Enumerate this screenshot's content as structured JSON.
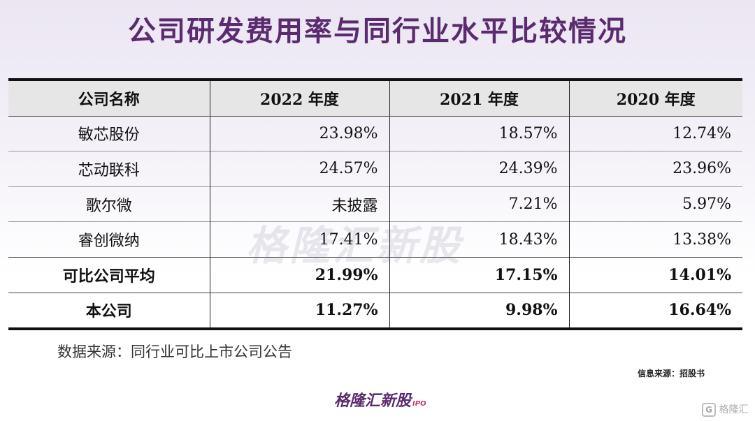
{
  "title": "公司研发费用率与同行业水平比较情况",
  "table": {
    "headers": [
      "公司名称",
      "2022 年度",
      "2021 年度",
      "2020 年度"
    ],
    "rows": [
      {
        "name": "敏芯股份",
        "y2022": "23.98%",
        "y2021": "18.57%",
        "y2020": "12.74%"
      },
      {
        "name": "芯动联科",
        "y2022": "24.57%",
        "y2021": "24.39%",
        "y2020": "23.96%"
      },
      {
        "name": "歌尔微",
        "y2022": "未披露",
        "y2021": "7.21%",
        "y2020": "5.97%"
      },
      {
        "name": "睿创微纳",
        "y2022": "17.41%",
        "y2021": "18.43%",
        "y2020": "13.38%"
      },
      {
        "name": "可比公司平均",
        "y2022": "21.99%",
        "y2021": "17.15%",
        "y2020": "14.01%"
      },
      {
        "name": "本公司",
        "y2022": "11.27%",
        "y2021": "9.98%",
        "y2020": "16.64%"
      }
    ]
  },
  "source_note": "数据来源：同行业可比上市公司公告",
  "info_source": "信息来源：招股书",
  "watermark": "格隆汇新股",
  "logo": {
    "text": "格隆汇新股",
    "suffix": "IPO"
  },
  "corner_brand": {
    "icon": "G",
    "text": "格隆汇"
  }
}
